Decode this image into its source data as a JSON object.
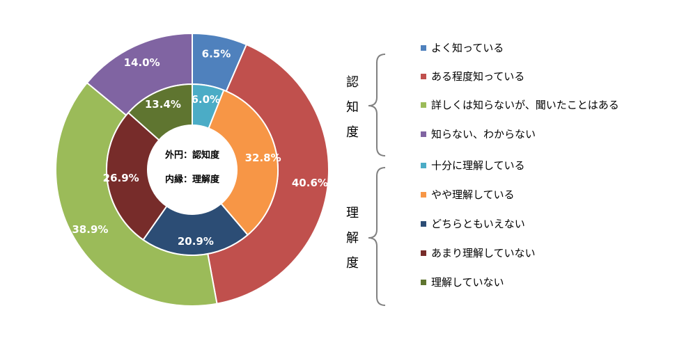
{
  "chart_data": {
    "type": "donut",
    "center_labels": [
      "外円：認知度",
      "内縁：理解度"
    ],
    "series": [
      {
        "name": "認知度",
        "ring": "outer",
        "categories": [
          "よく知っている",
          "ある程度知っている",
          "詳しくは知らないが、聞いたことはある",
          "知らない、わからない"
        ],
        "values": [
          6.5,
          40.6,
          38.9,
          14.0
        ],
        "labels": [
          "6.5%",
          "40.6%",
          "38.9%",
          "14.0%"
        ],
        "colors": [
          "#4F81BD",
          "#C0504D",
          "#9BBB59",
          "#8064A2"
        ]
      },
      {
        "name": "理解度",
        "ring": "inner",
        "categories": [
          "十分に理解している",
          "やや理解している",
          "どちらともいえない",
          "あまり理解していない",
          "理解していない"
        ],
        "values": [
          6.0,
          32.8,
          20.9,
          26.9,
          13.4
        ],
        "labels": [
          "6.0%",
          "32.8%",
          "20.9%",
          "26.9%",
          "13.4%"
        ],
        "colors": [
          "#4BACC6",
          "#F79646",
          "#2C4D75",
          "#772C2A",
          "#5F7530"
        ]
      }
    ],
    "legend": {
      "groups": [
        {
          "title": [
            "認",
            "知",
            "度"
          ],
          "items": [
            "よく知っている",
            "ある程度知っている",
            "詳しくは知らないが、聞いたことはある",
            "知らない、わからない"
          ]
        },
        {
          "title": [
            "理",
            "解",
            "度"
          ],
          "items": [
            "十分に理解している",
            "やや理解している",
            "どちらともいえない",
            "あまり理解していない",
            "理解していない"
          ]
        }
      ],
      "placement": "right"
    }
  }
}
